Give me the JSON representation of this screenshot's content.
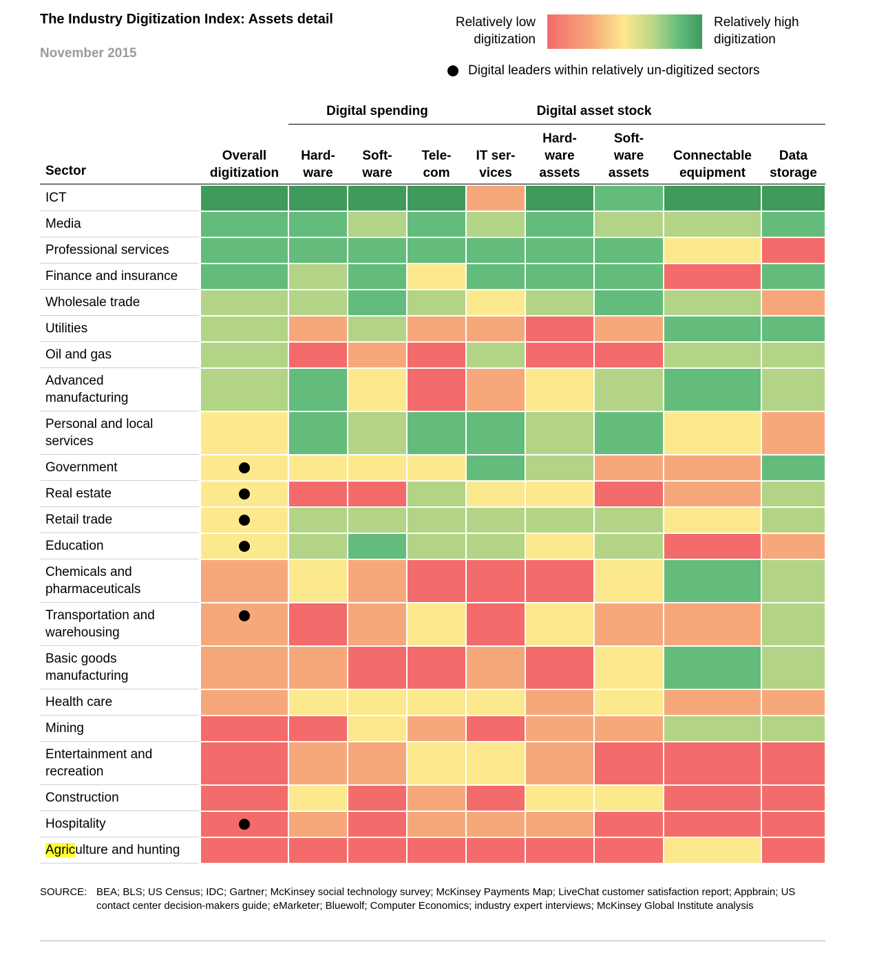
{
  "header": {
    "title": "The Industry Digitization Index: Assets detail",
    "subtitle": "November 2015"
  },
  "legend": {
    "low_label": "Relatively low digitization",
    "high_label": "Relatively high digitization",
    "dot_label": "Digital leaders within relatively un-digitized sectors",
    "scale_colors": [
      "#f46b6b",
      "#f7a87a",
      "#fce98e",
      "#b3d487",
      "#63bc7b",
      "#3f9a5c"
    ]
  },
  "chart_data": {
    "type": "heatmap",
    "title": "The Industry Digitization Index: Assets detail",
    "subtitle": "November 2015",
    "row_header": "Sector",
    "column_groups": [
      {
        "label": "Digital spending",
        "columns": [
          "Hard-ware",
          "Soft-ware",
          "Tele-com"
        ]
      },
      {
        "label": "Digital asset stock",
        "columns": [
          "IT ser-vices",
          "Hard-ware assets",
          "Soft-ware assets",
          "Connectable equipment",
          "Data storage"
        ]
      }
    ],
    "columns": [
      "Overall digitization",
      "Hard-ware",
      "Soft-ware",
      "Tele-com",
      "IT ser-vices",
      "Hard-ware assets",
      "Soft-ware assets",
      "Connectable equipment",
      "Data storage"
    ],
    "column_header_lines": [
      [
        "Overall",
        "digitization"
      ],
      [
        "Hard-",
        "ware"
      ],
      [
        "Soft-",
        "ware"
      ],
      [
        "Tele-",
        "com"
      ],
      [
        "IT ser-",
        "vices"
      ],
      [
        "Hard-",
        "ware",
        "assets"
      ],
      [
        "Soft-",
        "ware",
        "assets"
      ],
      [
        "Connectable",
        "equipment"
      ],
      [
        "Data",
        "storage"
      ]
    ],
    "scale": "1 = relatively low digitization, 6 = relatively high digitization",
    "rows": [
      {
        "sector": "ICT",
        "values": [
          6,
          6,
          6,
          6,
          2,
          6,
          5,
          6,
          6
        ],
        "leader": false
      },
      {
        "sector": "Media",
        "values": [
          5,
          5,
          4,
          5,
          4,
          5,
          4,
          4,
          5
        ],
        "leader": false
      },
      {
        "sector": "Professional services",
        "values": [
          5,
          5,
          5,
          5,
          5,
          5,
          5,
          3,
          1
        ],
        "leader": false
      },
      {
        "sector": "Finance and insurance",
        "values": [
          5,
          4,
          5,
          3,
          5,
          5,
          5,
          1,
          5
        ],
        "leader": false
      },
      {
        "sector": "Wholesale trade",
        "values": [
          4,
          4,
          5,
          4,
          3,
          4,
          5,
          4,
          2
        ],
        "leader": false
      },
      {
        "sector": "Utilities",
        "values": [
          4,
          2,
          4,
          2,
          2,
          1,
          2,
          5,
          5
        ],
        "leader": false
      },
      {
        "sector": "Oil and gas",
        "values": [
          4,
          1,
          2,
          1,
          4,
          1,
          1,
          4,
          4
        ],
        "leader": false
      },
      {
        "sector": "Advanced manufacturing",
        "values": [
          4,
          5,
          3,
          1,
          2,
          3,
          4,
          5,
          4
        ],
        "leader": false
      },
      {
        "sector": "Personal and local services",
        "values": [
          3,
          5,
          4,
          5,
          5,
          4,
          5,
          3,
          2
        ],
        "leader": false
      },
      {
        "sector": "Government",
        "values": [
          3,
          3,
          3,
          3,
          5,
          4,
          2,
          2,
          5
        ],
        "leader": true
      },
      {
        "sector": "Real estate",
        "values": [
          3,
          1,
          1,
          4,
          3,
          3,
          1,
          2,
          4
        ],
        "leader": true
      },
      {
        "sector": "Retail trade",
        "values": [
          3,
          4,
          4,
          4,
          4,
          4,
          4,
          3,
          4
        ],
        "leader": true
      },
      {
        "sector": "Education",
        "values": [
          3,
          4,
          5,
          4,
          4,
          3,
          4,
          1,
          2
        ],
        "leader": true
      },
      {
        "sector": "Chemicals and pharmaceuticals",
        "values": [
          2,
          3,
          2,
          1,
          1,
          1,
          3,
          5,
          4
        ],
        "leader": false
      },
      {
        "sector": "Transportation and warehousing",
        "values": [
          2,
          1,
          2,
          3,
          1,
          3,
          2,
          2,
          4
        ],
        "leader": true
      },
      {
        "sector": "Basic goods manufacturing",
        "values": [
          2,
          2,
          1,
          1,
          2,
          1,
          3,
          5,
          4
        ],
        "leader": false
      },
      {
        "sector": "Health care",
        "values": [
          2,
          3,
          3,
          3,
          3,
          2,
          3,
          2,
          2
        ],
        "leader": false
      },
      {
        "sector": "Mining",
        "values": [
          1,
          1,
          3,
          2,
          1,
          2,
          2,
          4,
          4
        ],
        "leader": false
      },
      {
        "sector": "Entertainment and recreation",
        "values": [
          1,
          2,
          2,
          3,
          3,
          2,
          1,
          1,
          1
        ],
        "leader": false
      },
      {
        "sector": "Construction",
        "values": [
          1,
          3,
          1,
          2,
          1,
          3,
          3,
          1,
          1
        ],
        "leader": false
      },
      {
        "sector": "Hospitality",
        "values": [
          1,
          2,
          1,
          2,
          2,
          2,
          1,
          1,
          1
        ],
        "leader": true
      },
      {
        "sector": "Agriculture and hunting",
        "values": [
          1,
          1,
          1,
          1,
          1,
          1,
          1,
          3,
          1
        ],
        "leader": false
      }
    ],
    "sector_label_lines": [
      [
        "ICT"
      ],
      [
        "Media"
      ],
      [
        "Professional services"
      ],
      [
        "Finance and insurance"
      ],
      [
        "Wholesale trade"
      ],
      [
        "Utilities"
      ],
      [
        "Oil and gas"
      ],
      [
        "Advanced",
        "manufacturing"
      ],
      [
        "Personal and local",
        "services"
      ],
      [
        "Government"
      ],
      [
        "Real estate"
      ],
      [
        "Retail trade"
      ],
      [
        "Education"
      ],
      [
        "Chemicals and",
        "pharmaceuticals"
      ],
      [
        "Transportation and",
        "warehousing"
      ],
      [
        "Basic goods",
        "manufacturing"
      ],
      [
        "Health care"
      ],
      [
        "Mining"
      ],
      [
        "Entertainment and",
        "recreation"
      ],
      [
        "Construction"
      ],
      [
        "Hospitality"
      ],
      [
        "Agriculture and hunting"
      ]
    ],
    "highlighted_text": "Agric"
  },
  "source": {
    "key": "SOURCE:",
    "text": "BEA; BLS; US Census; IDC; Gartner; McKinsey social technology survey; McKinsey Payments Map; LiveChat customer satisfaction report; Appbrain; US contact center decision-makers guide; eMarketer; Bluewolf; Computer Economics; industry expert interviews; McKinsey Global Institute analysis"
  }
}
